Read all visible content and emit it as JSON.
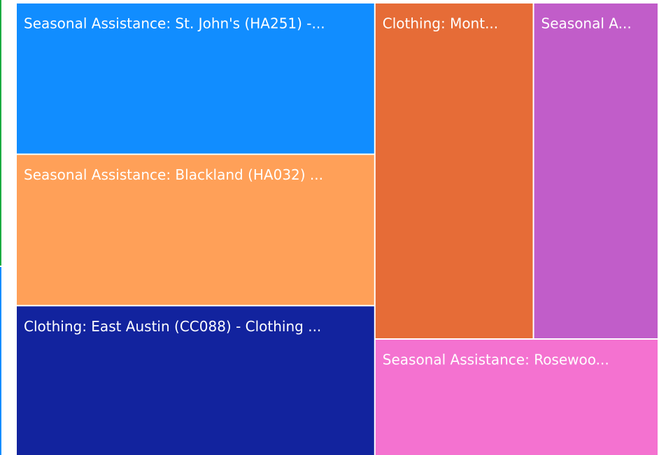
{
  "chart_data": {
    "type": "treemap",
    "categories": [
      "Seasonal Assistance: St. John's (HA251) -...",
      "Seasonal Assistance: Blackland (HA032) ...",
      "Clothing: East Austin (CC088) - Clothing ...",
      "Clothing: Mont...",
      "Seasonal A...",
      "Seasonal Assistance: Rosewoo..."
    ],
    "values": [
      110,
      110,
      109,
      108,
      85,
      67
    ],
    "colors": [
      "#118dff",
      "#ffa058",
      "#12239e",
      "#e66c37",
      "#c15dc9",
      "#f472d0"
    ]
  }
}
